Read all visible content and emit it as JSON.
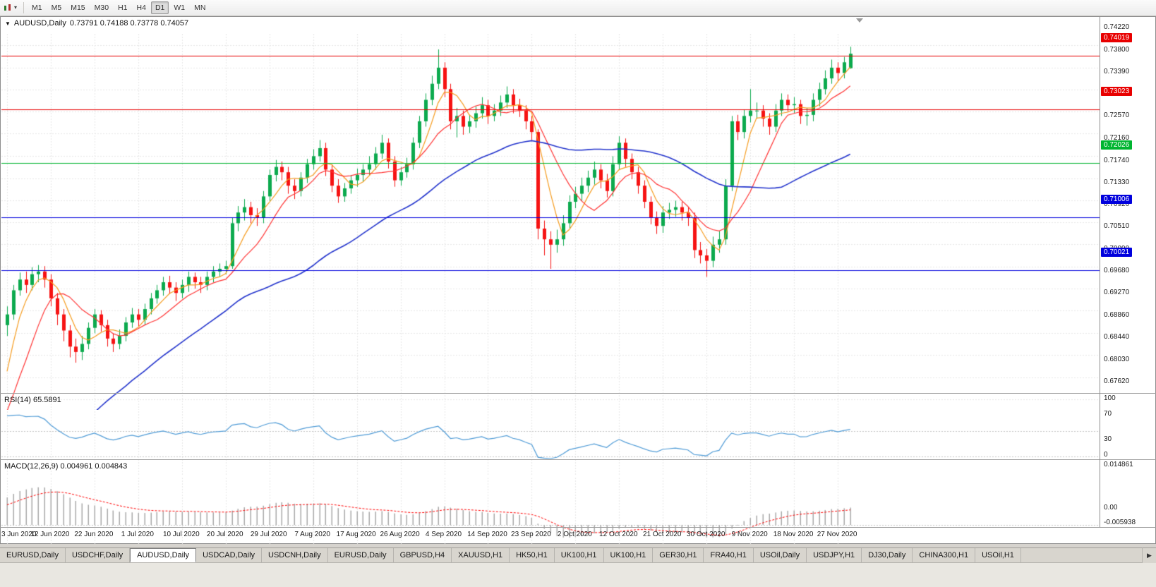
{
  "toolbar": {
    "dropdown_caret": "▾",
    "timeframes": [
      "M1",
      "M5",
      "M15",
      "M30",
      "H1",
      "H4",
      "D1",
      "W1",
      "MN"
    ],
    "active_timeframe": "D1"
  },
  "chart_data": {
    "type": "candlestick",
    "symbol": "AUDUSD,Daily",
    "ohlc_text": "0.73791 0.74188 0.73778 0.74057",
    "menu_icon_glyph": "▼",
    "price_axis": {
      "max": 0.7443,
      "min": 0.6742,
      "ticks": [
        "0.74220",
        "0.73800",
        "0.73390",
        "0.72980",
        "0.72570",
        "0.72160",
        "0.71740",
        "0.71330",
        "0.70920",
        "0.70510",
        "0.70090",
        "0.69680",
        "0.69270",
        "0.68860",
        "0.68440",
        "0.68030",
        "0.67620"
      ]
    },
    "date_labels": [
      "3 Jun 2020",
      "12 Jun 2020",
      "22 Jun 2020",
      "1 Jul 2020",
      "10 Jul 2020",
      "20 Jul 2020",
      "29 Jul 2020",
      "7 Aug 2020",
      "17 Aug 2020",
      "26 Aug 2020",
      "4 Sep 2020",
      "14 Sep 2020",
      "23 Sep 2020",
      "2 Oct 2020",
      "12 Oct 2020",
      "21 Oct 2020",
      "30 Oct 2020",
      "9 Nov 2020",
      "18 Nov 2020",
      "27 Nov 2020"
    ],
    "label_every_n_candles": 7,
    "colors": {
      "bull": "#0caa4e",
      "bear": "#f61313",
      "grid": "#e7e7e7",
      "level_dash": "#c4c4c4"
    },
    "hlines": [
      {
        "price": 0.74019,
        "label": "0.74019",
        "color": "#e80000"
      },
      {
        "price": 0.73023,
        "label": "0.73023",
        "color": "#e80000"
      },
      {
        "price": 0.72026,
        "label": "0.72026",
        "color": "#00b530"
      },
      {
        "price": 0.71006,
        "label": "0.71006",
        "color": "#0000dd"
      },
      {
        "price": 0.70021,
        "label": "0.70021",
        "color": "#0000dd"
      }
    ],
    "moving_averages": [
      {
        "period": 5,
        "color": "#f59b1e",
        "width": 1.2
      },
      {
        "period": 10,
        "color": "#ff3333",
        "width": 1.2
      },
      {
        "period": 40,
        "color": "#2233cc",
        "width": 1.6
      }
    ],
    "warmup_closes": [
      0.645,
      0.647,
      0.646,
      0.649,
      0.651,
      0.653,
      0.652,
      0.655,
      0.657,
      0.656,
      0.659,
      0.661,
      0.663,
      0.662,
      0.664,
      0.665,
      0.6645,
      0.666,
      0.6655,
      0.667,
      0.6665,
      0.668,
      0.67,
      0.675,
      0.682,
      0.688
    ],
    "candles": [
      [
        0.69,
        0.6935,
        0.688,
        0.692
      ],
      [
        0.692,
        0.6975,
        0.691,
        0.6965
      ],
      [
        0.6965,
        0.6998,
        0.6955,
        0.6985
      ],
      [
        0.6985,
        0.7,
        0.696,
        0.6975
      ],
      [
        0.6975,
        0.7008,
        0.6965,
        0.6995
      ],
      [
        0.6995,
        0.7012,
        0.698,
        0.7
      ],
      [
        0.7,
        0.701,
        0.697,
        0.6985
      ],
      [
        0.6985,
        0.6995,
        0.6935,
        0.695
      ],
      [
        0.695,
        0.696,
        0.69,
        0.692
      ],
      [
        0.692,
        0.693,
        0.687,
        0.689
      ],
      [
        0.689,
        0.69,
        0.684,
        0.686
      ],
      [
        0.686,
        0.6875,
        0.683,
        0.685
      ],
      [
        0.685,
        0.688,
        0.6835,
        0.6865
      ],
      [
        0.6865,
        0.6905,
        0.6855,
        0.6895
      ],
      [
        0.6895,
        0.693,
        0.6885,
        0.692
      ],
      [
        0.692,
        0.6928,
        0.6888,
        0.69
      ],
      [
        0.69,
        0.691,
        0.686,
        0.6875
      ],
      [
        0.6875,
        0.6885,
        0.685,
        0.6865
      ],
      [
        0.6865,
        0.6892,
        0.6855,
        0.688
      ],
      [
        0.688,
        0.6915,
        0.687,
        0.6905
      ],
      [
        0.6905,
        0.6932,
        0.6895,
        0.692
      ],
      [
        0.692,
        0.693,
        0.6898,
        0.691
      ],
      [
        0.691,
        0.694,
        0.69,
        0.693
      ],
      [
        0.693,
        0.696,
        0.692,
        0.695
      ],
      [
        0.695,
        0.6975,
        0.694,
        0.6965
      ],
      [
        0.6965,
        0.699,
        0.6955,
        0.698
      ],
      [
        0.698,
        0.6992,
        0.6958,
        0.697
      ],
      [
        0.697,
        0.698,
        0.6945,
        0.696
      ],
      [
        0.696,
        0.6985,
        0.695,
        0.6975
      ],
      [
        0.6975,
        0.7,
        0.6962,
        0.699
      ],
      [
        0.699,
        0.6998,
        0.6968,
        0.698
      ],
      [
        0.698,
        0.699,
        0.696,
        0.6975
      ],
      [
        0.6975,
        0.7,
        0.6965,
        0.699
      ],
      [
        0.699,
        0.701,
        0.698,
        0.7
      ],
      [
        0.7,
        0.7015,
        0.699,
        0.7005
      ],
      [
        0.7005,
        0.702,
        0.6995,
        0.701
      ],
      [
        0.701,
        0.71,
        0.7005,
        0.709
      ],
      [
        0.709,
        0.7122,
        0.7075,
        0.711
      ],
      [
        0.711,
        0.7135,
        0.7095,
        0.712
      ],
      [
        0.712,
        0.713,
        0.709,
        0.7105
      ],
      [
        0.7105,
        0.7118,
        0.7085,
        0.71
      ],
      [
        0.71,
        0.715,
        0.709,
        0.714
      ],
      [
        0.714,
        0.719,
        0.713,
        0.718
      ],
      [
        0.718,
        0.7208,
        0.7168,
        0.7195
      ],
      [
        0.7195,
        0.7205,
        0.717,
        0.7185
      ],
      [
        0.7185,
        0.7195,
        0.7145,
        0.716
      ],
      [
        0.716,
        0.7172,
        0.7135,
        0.715
      ],
      [
        0.715,
        0.7185,
        0.714,
        0.7175
      ],
      [
        0.7175,
        0.721,
        0.7165,
        0.72
      ],
      [
        0.72,
        0.7228,
        0.719,
        0.7215
      ],
      [
        0.7215,
        0.7245,
        0.7205,
        0.723
      ],
      [
        0.723,
        0.724,
        0.7178,
        0.719
      ],
      [
        0.719,
        0.72,
        0.7148,
        0.716
      ],
      [
        0.716,
        0.7172,
        0.7128,
        0.714
      ],
      [
        0.714,
        0.7165,
        0.713,
        0.7155
      ],
      [
        0.7155,
        0.718,
        0.7145,
        0.717
      ],
      [
        0.717,
        0.7192,
        0.7158,
        0.718
      ],
      [
        0.718,
        0.72,
        0.7168,
        0.719
      ],
      [
        0.719,
        0.7215,
        0.718,
        0.72
      ],
      [
        0.72,
        0.7232,
        0.719,
        0.722
      ],
      [
        0.722,
        0.7255,
        0.721,
        0.724
      ],
      [
        0.724,
        0.7248,
        0.7192,
        0.7205
      ],
      [
        0.7205,
        0.7215,
        0.7158,
        0.717
      ],
      [
        0.717,
        0.7195,
        0.716,
        0.7185
      ],
      [
        0.7185,
        0.7212,
        0.7175,
        0.72
      ],
      [
        0.72,
        0.725,
        0.719,
        0.724
      ],
      [
        0.724,
        0.729,
        0.723,
        0.728
      ],
      [
        0.728,
        0.7332,
        0.727,
        0.732
      ],
      [
        0.732,
        0.7365,
        0.731,
        0.735
      ],
      [
        0.735,
        0.7414,
        0.734,
        0.738
      ],
      [
        0.738,
        0.739,
        0.7325,
        0.734
      ],
      [
        0.734,
        0.735,
        0.7265,
        0.728
      ],
      [
        0.728,
        0.7305,
        0.725,
        0.729
      ],
      [
        0.729,
        0.73,
        0.7255,
        0.727
      ],
      [
        0.727,
        0.7292,
        0.7258,
        0.728
      ],
      [
        0.728,
        0.7308,
        0.7268,
        0.7295
      ],
      [
        0.7295,
        0.7325,
        0.7285,
        0.731
      ],
      [
        0.731,
        0.732,
        0.7275,
        0.729
      ],
      [
        0.729,
        0.7312,
        0.728,
        0.73
      ],
      [
        0.73,
        0.7328,
        0.729,
        0.7315
      ],
      [
        0.7315,
        0.7345,
        0.7305,
        0.733
      ],
      [
        0.733,
        0.734,
        0.7295,
        0.731
      ],
      [
        0.731,
        0.7322,
        0.7288,
        0.73
      ],
      [
        0.73,
        0.731,
        0.7265,
        0.728
      ],
      [
        0.728,
        0.729,
        0.7245,
        0.726
      ],
      [
        0.726,
        0.7265,
        0.706,
        0.708
      ],
      [
        0.708,
        0.7095,
        0.703,
        0.706
      ],
      [
        0.706,
        0.7075,
        0.7005,
        0.705
      ],
      [
        0.705,
        0.7078,
        0.7035,
        0.706
      ],
      [
        0.706,
        0.7105,
        0.7048,
        0.709
      ],
      [
        0.709,
        0.7142,
        0.708,
        0.713
      ],
      [
        0.713,
        0.7158,
        0.7118,
        0.7145
      ],
      [
        0.7145,
        0.7175,
        0.7132,
        0.716
      ],
      [
        0.716,
        0.7188,
        0.7148,
        0.7175
      ],
      [
        0.7175,
        0.7205,
        0.7162,
        0.719
      ],
      [
        0.719,
        0.72,
        0.7155,
        0.717
      ],
      [
        0.717,
        0.7182,
        0.7138,
        0.715
      ],
      [
        0.715,
        0.7215,
        0.714,
        0.72
      ],
      [
        0.72,
        0.7252,
        0.719,
        0.724
      ],
      [
        0.724,
        0.7248,
        0.7195,
        0.721
      ],
      [
        0.721,
        0.722,
        0.7172,
        0.7185
      ],
      [
        0.7185,
        0.7195,
        0.7145,
        0.716
      ],
      [
        0.716,
        0.717,
        0.7118,
        0.713
      ],
      [
        0.713,
        0.714,
        0.7088,
        0.71
      ],
      [
        0.71,
        0.7112,
        0.707,
        0.7085
      ],
      [
        0.7085,
        0.7122,
        0.7072,
        0.711
      ],
      [
        0.711,
        0.7128,
        0.7098,
        0.7115
      ],
      [
        0.7115,
        0.7132,
        0.7102,
        0.712
      ],
      [
        0.712,
        0.713,
        0.7095,
        0.711
      ],
      [
        0.711,
        0.712,
        0.7085,
        0.71
      ],
      [
        0.71,
        0.711,
        0.7025,
        0.704
      ],
      [
        0.704,
        0.7055,
        0.7015,
        0.703
      ],
      [
        0.703,
        0.7042,
        0.699,
        0.702
      ],
      [
        0.702,
        0.7065,
        0.7008,
        0.705
      ],
      [
        0.705,
        0.7075,
        0.7035,
        0.706
      ],
      [
        0.706,
        0.7172,
        0.705,
        0.716
      ],
      [
        0.716,
        0.729,
        0.715,
        0.728
      ],
      [
        0.728,
        0.7292,
        0.7245,
        0.726
      ],
      [
        0.726,
        0.7302,
        0.7248,
        0.729
      ],
      [
        0.729,
        0.734,
        0.7278,
        0.73
      ],
      [
        0.73,
        0.7315,
        0.7285,
        0.73
      ],
      [
        0.73,
        0.731,
        0.727,
        0.7285
      ],
      [
        0.7285,
        0.7295,
        0.7255,
        0.727
      ],
      [
        0.727,
        0.7312,
        0.726,
        0.73
      ],
      [
        0.73,
        0.7332,
        0.729,
        0.732
      ],
      [
        0.732,
        0.733,
        0.7298,
        0.731
      ],
      [
        0.731,
        0.7325,
        0.7295,
        0.7312
      ],
      [
        0.7312,
        0.732,
        0.7275,
        0.729
      ],
      [
        0.729,
        0.7305,
        0.7272,
        0.7292
      ],
      [
        0.7292,
        0.7332,
        0.728,
        0.732
      ],
      [
        0.732,
        0.7352,
        0.7308,
        0.734
      ],
      [
        0.734,
        0.7375,
        0.733,
        0.736
      ],
      [
        0.736,
        0.7395,
        0.735,
        0.738
      ],
      [
        0.738,
        0.739,
        0.7355,
        0.737
      ],
      [
        0.737,
        0.74,
        0.736,
        0.739
      ],
      [
        0.7379,
        0.7419,
        0.7378,
        0.7406
      ]
    ],
    "rsi": {
      "label": "RSI(14) 65.5891",
      "period": 14,
      "line_color": "#4f9bd6",
      "axis_labels": [
        "100",
        "70",
        "30",
        "0"
      ],
      "levels": [
        70,
        30
      ]
    },
    "macd": {
      "label": "MACD(12,26,9) 0.004961 0.004843",
      "fast": 12,
      "slow": 26,
      "signal": 9,
      "histogram_color": "#a8a8a8",
      "signal_color": "#ff0000",
      "axis_labels": [
        "0.014861",
        "0.00",
        "-0.005938"
      ],
      "max": 0.014861,
      "min": -0.005938
    }
  },
  "tabs": {
    "items": [
      "EURUSD,Daily",
      "USDCHF,Daily",
      "AUDUSD,Daily",
      "USDCAD,Daily",
      "USDCNH,Daily",
      "EURUSD,Daily",
      "GBPUSD,H4",
      "XAUUSD,H1",
      "HK50,H1",
      "UK100,H1",
      "UK100,H1",
      "GER30,H1",
      "FRA40,H1",
      "USOil,Daily",
      "USDJPY,H1",
      "DJ30,Daily",
      "CHINA300,H1",
      "USOil,H1"
    ],
    "active_index": 2,
    "scroll_right_glyph": "▶"
  }
}
